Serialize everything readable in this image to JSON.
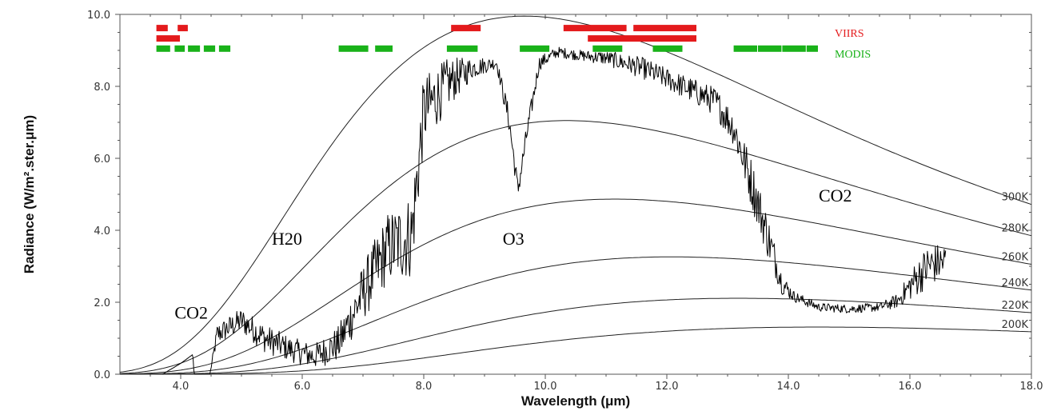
{
  "chart_data": {
    "type": "line",
    "title": "",
    "xlabel": "Wavelength (μm)",
    "ylabel": "Radiance (W/m².ster.μm)",
    "xlim": [
      3.0,
      18.0
    ],
    "ylim": [
      0.0,
      10.0
    ],
    "x_ticks": [
      "4.0",
      "6.0",
      "8.0",
      "10.0",
      "12.0",
      "14.0",
      "16.0",
      "18.0"
    ],
    "y_ticks": [
      "0.0",
      "2.0",
      "4.0",
      "6.0",
      "8.0",
      "10.0"
    ],
    "grid": false,
    "blackbody_curves": [
      {
        "label": "300K",
        "temperature": 300
      },
      {
        "label": "280K",
        "temperature": 280
      },
      {
        "label": "260K",
        "temperature": 260
      },
      {
        "label": "240K",
        "temperature": 240
      },
      {
        "label": "220K",
        "temperature": 220
      },
      {
        "label": "200K",
        "temperature": 200
      }
    ],
    "spectrum_anchors": {
      "x": [
        3.7,
        4.0,
        4.2,
        4.22,
        4.48,
        4.6,
        5.0,
        5.4,
        5.8,
        6.2,
        6.6,
        7.0,
        7.4,
        7.8,
        8.0,
        8.4,
        8.8,
        9.2,
        9.4,
        9.55,
        9.7,
        9.9,
        10.2,
        10.6,
        11.0,
        11.6,
        12.0,
        12.4,
        12.8,
        13.1,
        13.4,
        13.7,
        13.9,
        14.1,
        14.5,
        15.0,
        15.5,
        15.8,
        16.1,
        16.3,
        16.6
      ],
      "y": [
        0.0,
        0.3,
        0.55,
        0.0,
        0.0,
        1.2,
        1.6,
        1.1,
        0.8,
        0.6,
        1.0,
        2.5,
        3.8,
        4.2,
        7.6,
        8.3,
        8.6,
        8.7,
        7.2,
        5.2,
        6.8,
        8.7,
        9.0,
        8.9,
        8.85,
        8.6,
        8.3,
        8.0,
        7.7,
        7.0,
        5.5,
        3.8,
        2.6,
        2.2,
        1.9,
        1.85,
        1.9,
        2.1,
        2.8,
        3.2,
        3.3
      ],
      "noise": [
        0.0,
        0.0,
        0.0,
        0.0,
        0.0,
        0.3,
        0.35,
        0.4,
        0.35,
        0.35,
        0.5,
        0.8,
        1.0,
        1.2,
        1.0,
        0.7,
        0.3,
        0.15,
        0.35,
        0.3,
        0.3,
        0.2,
        0.15,
        0.15,
        0.2,
        0.3,
        0.3,
        0.35,
        0.4,
        0.5,
        0.7,
        0.6,
        0.3,
        0.15,
        0.12,
        0.12,
        0.12,
        0.2,
        0.5,
        0.6,
        0.5
      ]
    },
    "annotations": [
      {
        "text": "CO2",
        "x": 3.9,
        "y": 1.55
      },
      {
        "text": "H20",
        "x": 5.5,
        "y": 3.6
      },
      {
        "text": "O3",
        "x": 9.3,
        "y": 3.6
      },
      {
        "text": "CO2",
        "x": 14.5,
        "y": 4.8
      }
    ],
    "sensors": [
      {
        "name": "VIIRS",
        "color": "#e41a1c",
        "rows": [
          {
            "y": 9.62,
            "bands": [
              [
                3.6,
                3.8
              ],
              [
                3.95,
                4.13
              ],
              [
                8.45,
                8.95
              ],
              [
                10.3,
                11.35
              ],
              [
                11.45,
                12.5
              ]
            ]
          },
          {
            "y": 9.33,
            "bands": [
              [
                3.6,
                4.0
              ],
              [
                10.7,
                12.5
              ]
            ]
          }
        ]
      },
      {
        "name": "MODIS",
        "color": "#19b219",
        "rows": [
          {
            "y": 9.05,
            "bands": [
              [
                3.6,
                3.84
              ],
              [
                3.9,
                4.08
              ],
              [
                4.12,
                4.33
              ],
              [
                4.38,
                4.58
              ],
              [
                4.63,
                4.83
              ],
              [
                6.6,
                7.1
              ],
              [
                7.2,
                7.5
              ],
              [
                8.38,
                8.9
              ],
              [
                9.58,
                10.08
              ],
              [
                10.78,
                11.28
              ],
              [
                11.77,
                12.27
              ],
              [
                13.1,
                13.5
              ],
              [
                13.5,
                13.9
              ],
              [
                13.9,
                14.3
              ],
              [
                14.3,
                14.5
              ]
            ]
          }
        ]
      }
    ],
    "legend": [
      {
        "label": "VIIRS",
        "color": "#e41a1c"
      },
      {
        "label": "MODIS",
        "color": "#19b219"
      }
    ]
  }
}
